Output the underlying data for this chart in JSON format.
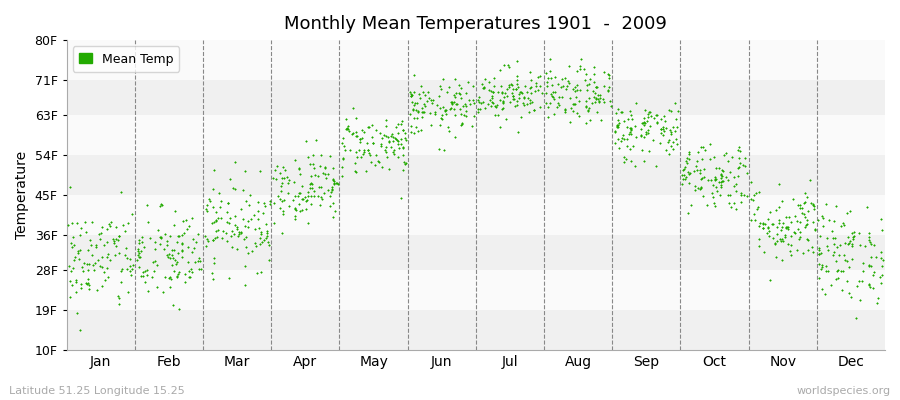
{
  "title": "Monthly Mean Temperatures 1901  -  2009",
  "ylabel": "Temperature",
  "bottom_left_text": "Latitude 51.25 Longitude 15.25",
  "bottom_right_text": "worldspecies.org",
  "dot_color": "#22aa00",
  "background_color": "#ffffff",
  "plot_bg_color": "#ffffff",
  "band_colors": [
    "#f0f0f0",
    "#fafafa"
  ],
  "legend_label": "Mean Temp",
  "ytick_labels": [
    "10F",
    "19F",
    "28F",
    "36F",
    "45F",
    "54F",
    "63F",
    "71F",
    "80F"
  ],
  "ytick_values": [
    10,
    19,
    28,
    36,
    45,
    54,
    63,
    71,
    80
  ],
  "ylim": [
    10,
    80
  ],
  "months": [
    "Jan",
    "Feb",
    "Mar",
    "Apr",
    "May",
    "Jun",
    "Jul",
    "Aug",
    "Sep",
    "Oct",
    "Nov",
    "Dec"
  ],
  "num_years": 109,
  "mean_temps_f": [
    30.5,
    31.0,
    38.5,
    47.0,
    56.5,
    64.5,
    68.0,
    67.5,
    59.5,
    49.5,
    38.5,
    31.5
  ],
  "std_temps_f": [
    6.0,
    5.5,
    5.0,
    4.0,
    3.5,
    3.2,
    3.0,
    3.2,
    3.5,
    4.0,
    4.5,
    5.5
  ],
  "seed": 42
}
